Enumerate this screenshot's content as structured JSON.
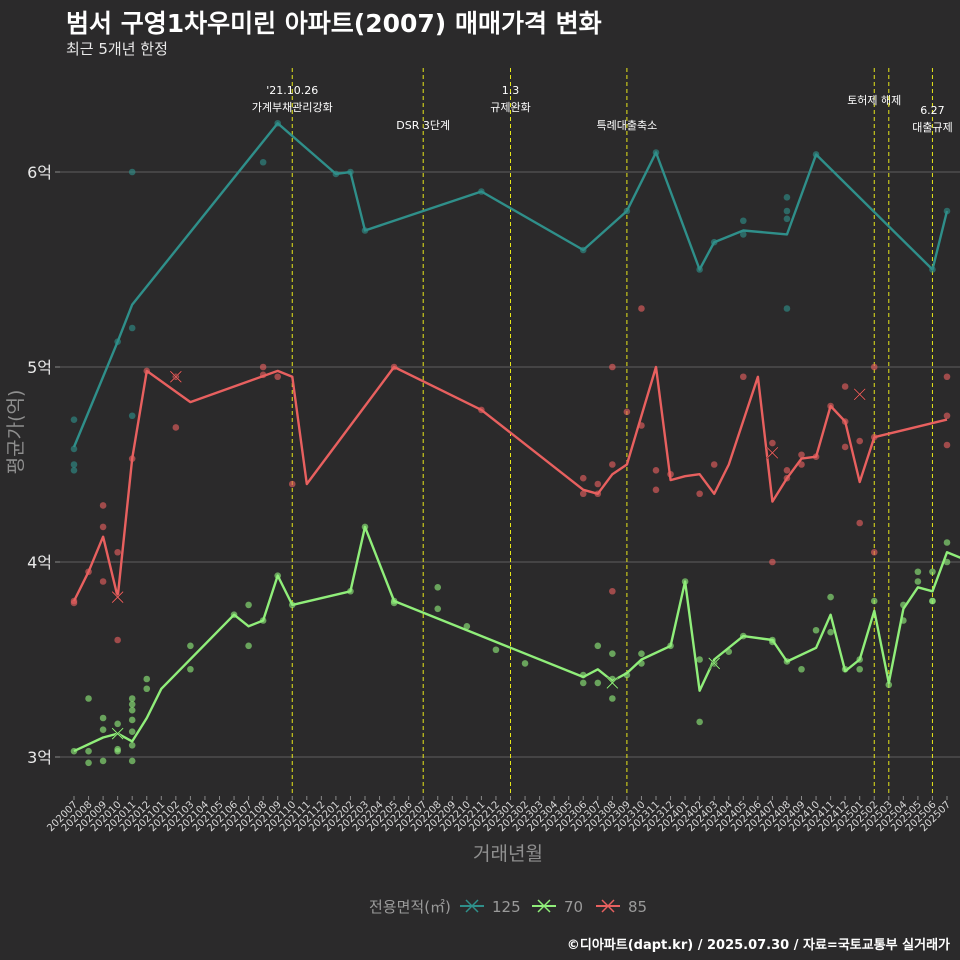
{
  "title": "범서 구영1차우미린 아파트(2007) 매매가격 변화",
  "subtitle": "최근 5개년 한정",
  "caption": "©디아파트(dapt.kr) / 2025.07.30 / 자료=국토교통부 실거래가",
  "chart_data": {
    "type": "line",
    "xlabel": "거래년월",
    "ylabel": "평균가(억)",
    "ylim": [
      2.8,
      6.5
    ],
    "grid": true,
    "legend_position": "bottom",
    "legend_title": "전용면적(㎡)",
    "y_ticks": [
      {
        "value": 3,
        "label": "3억"
      },
      {
        "value": 4,
        "label": "4억"
      },
      {
        "value": 5,
        "label": "5억"
      },
      {
        "value": 6,
        "label": "6억"
      }
    ],
    "categories": [
      "202007",
      "202008",
      "202009",
      "202010",
      "202011",
      "202012",
      "202101",
      "202102",
      "202103",
      "202104",
      "202105",
      "202106",
      "202107",
      "202108",
      "202109",
      "202110",
      "202111",
      "202112",
      "202201",
      "202202",
      "202203",
      "202204",
      "202205",
      "202206",
      "202207",
      "202208",
      "202209",
      "202210",
      "202211",
      "202212",
      "202301",
      "202302",
      "202303",
      "202304",
      "202305",
      "202306",
      "202307",
      "202308",
      "202309",
      "202310",
      "202311",
      "202312",
      "202401",
      "202402",
      "202403",
      "202404",
      "202405",
      "202406",
      "202407",
      "202408",
      "202409",
      "202410",
      "202411",
      "202412",
      "202501",
      "202502",
      "202503",
      "202504",
      "202505",
      "202506",
      "202507"
    ],
    "events": [
      {
        "category": "202110",
        "label_lines": [
          "'21.10.26",
          "가계부채관리강화"
        ],
        "row": 0
      },
      {
        "category": "202207",
        "label_lines": [
          "DSR 3단계"
        ],
        "row": 2
      },
      {
        "category": "202301",
        "label_lines": [
          "1.3",
          "규제완화"
        ],
        "row": 0
      },
      {
        "category": "202309",
        "label_lines": [
          "특례대출축소"
        ],
        "row": 2
      },
      {
        "category": "202502",
        "label_lines": [
          "토허제 해제"
        ],
        "row": 1
      },
      {
        "category": "202503",
        "label_lines": [],
        "row": 1
      },
      {
        "category": "202506",
        "label_lines": [
          "6.27",
          "대출규제"
        ],
        "row": 2
      }
    ],
    "series": [
      {
        "name": "125",
        "color": "#2f8f8a",
        "line": [
          [
            "202007",
            4.59
          ],
          [
            "202010",
            5.13
          ],
          [
            "202011",
            5.32
          ],
          [
            "202109",
            6.25
          ],
          [
            "202201",
            5.99
          ],
          [
            "202202",
            6.0
          ],
          [
            "202203",
            5.7
          ],
          [
            "202211",
            5.9
          ],
          [
            "202306",
            5.6
          ],
          [
            "202309",
            5.8
          ],
          [
            "202311",
            6.1
          ],
          [
            "202402",
            5.5
          ],
          [
            "202403",
            5.64
          ],
          [
            "202405",
            5.7
          ],
          [
            "202408",
            5.68
          ],
          [
            "202410",
            6.09
          ],
          [
            "202506",
            5.5
          ],
          [
            "202507",
            5.8
          ]
        ],
        "points": [
          [
            "202007",
            4.73
          ],
          [
            "202007",
            4.5
          ],
          [
            "202007",
            4.47
          ],
          [
            "202007",
            4.58
          ],
          [
            "202010",
            5.13
          ],
          [
            "202011",
            6.0
          ],
          [
            "202011",
            5.2
          ],
          [
            "202011",
            4.75
          ],
          [
            "202108",
            6.05
          ],
          [
            "202109",
            6.25
          ],
          [
            "202201",
            5.99
          ],
          [
            "202202",
            6.0
          ],
          [
            "202203",
            5.7
          ],
          [
            "202211",
            5.9
          ],
          [
            "202306",
            5.6
          ],
          [
            "202309",
            5.8
          ],
          [
            "202311",
            6.1
          ],
          [
            "202402",
            5.5
          ],
          [
            "202403",
            5.64
          ],
          [
            "202405",
            5.75
          ],
          [
            "202405",
            5.68
          ],
          [
            "202408",
            5.87
          ],
          [
            "202408",
            5.8
          ],
          [
            "202408",
            5.76
          ],
          [
            "202408",
            5.3
          ],
          [
            "202410",
            6.09
          ],
          [
            "202506",
            5.5
          ],
          [
            "202507",
            5.8
          ]
        ],
        "crosses": []
      },
      {
        "name": "70",
        "color": "#90ee7a",
        "line": [
          [
            "202007",
            3.03
          ],
          [
            "202009",
            3.1
          ],
          [
            "202010",
            3.12
          ],
          [
            "202011",
            3.08
          ],
          [
            "202012",
            3.2
          ],
          [
            "202101",
            3.35
          ],
          [
            "202106",
            3.73
          ],
          [
            "202107",
            3.67
          ],
          [
            "202108",
            3.7
          ],
          [
            "202109",
            3.93
          ],
          [
            "202110",
            3.78
          ],
          [
            "202202",
            3.85
          ],
          [
            "202203",
            4.18
          ],
          [
            "202205",
            3.8
          ],
          [
            "202306",
            3.41
          ],
          [
            "202307",
            3.45
          ],
          [
            "202308",
            3.39
          ],
          [
            "202309",
            3.43
          ],
          [
            "202310",
            3.5
          ],
          [
            "202312",
            3.57
          ],
          [
            "202401",
            3.9
          ],
          [
            "202402",
            3.34
          ],
          [
            "202403",
            3.5
          ],
          [
            "202405",
            3.62
          ],
          [
            "202407",
            3.6
          ],
          [
            "202408",
            3.49
          ],
          [
            "202410",
            3.56
          ],
          [
            "202411",
            3.73
          ],
          [
            "202412",
            3.44
          ],
          [
            "202501",
            3.5
          ],
          [
            "202502",
            3.75
          ],
          [
            "202503",
            3.38
          ],
          [
            "202504",
            3.76
          ],
          [
            "202505",
            3.87
          ],
          [
            "202506",
            3.85
          ],
          [
            "202507",
            4.05
          ],
          [
            "202508",
            3.99
          ]
        ],
        "points": [
          [
            "202007",
            3.03
          ],
          [
            "202008",
            3.3
          ],
          [
            "202008",
            3.03
          ],
          [
            "202008",
            2.97
          ],
          [
            "202009",
            3.2
          ],
          [
            "202009",
            3.14
          ],
          [
            "202009",
            2.98
          ],
          [
            "202010",
            3.17
          ],
          [
            "202010",
            3.03
          ],
          [
            "202010",
            3.04
          ],
          [
            "202011",
            3.3
          ],
          [
            "202011",
            3.27
          ],
          [
            "202011",
            3.24
          ],
          [
            "202011",
            3.19
          ],
          [
            "202011",
            3.13
          ],
          [
            "202011",
            3.06
          ],
          [
            "202011",
            2.98
          ],
          [
            "202012",
            3.4
          ],
          [
            "202012",
            3.35
          ],
          [
            "202103",
            3.57
          ],
          [
            "202103",
            3.45
          ],
          [
            "202106",
            3.73
          ],
          [
            "202107",
            3.78
          ],
          [
            "202107",
            3.57
          ],
          [
            "202108",
            3.7
          ],
          [
            "202109",
            3.93
          ],
          [
            "202110",
            3.78
          ],
          [
            "202202",
            3.85
          ],
          [
            "202203",
            4.18
          ],
          [
            "202205",
            3.8
          ],
          [
            "202205",
            3.79
          ],
          [
            "202208",
            3.87
          ],
          [
            "202208",
            3.76
          ],
          [
            "202210",
            3.67
          ],
          [
            "202212",
            3.55
          ],
          [
            "202302",
            3.48
          ],
          [
            "202306",
            3.42
          ],
          [
            "202306",
            3.38
          ],
          [
            "202307",
            3.57
          ],
          [
            "202307",
            3.38
          ],
          [
            "202308",
            3.53
          ],
          [
            "202308",
            3.4
          ],
          [
            "202308",
            3.3
          ],
          [
            "202309",
            3.42
          ],
          [
            "202310",
            3.53
          ],
          [
            "202310",
            3.48
          ],
          [
            "202312",
            3.57
          ],
          [
            "202401",
            3.9
          ],
          [
            "202402",
            3.18
          ],
          [
            "202402",
            3.5
          ],
          [
            "202403",
            3.48
          ],
          [
            "202404",
            3.54
          ],
          [
            "202405",
            3.62
          ],
          [
            "202407",
            3.6
          ],
          [
            "202407",
            3.59
          ],
          [
            "202408",
            3.49
          ],
          [
            "202409",
            3.45
          ],
          [
            "202410",
            3.65
          ],
          [
            "202411",
            3.82
          ],
          [
            "202411",
            3.64
          ],
          [
            "202412",
            3.45
          ],
          [
            "202501",
            3.5
          ],
          [
            "202501",
            3.45
          ],
          [
            "202502",
            3.8
          ],
          [
            "202503",
            3.37
          ],
          [
            "202504",
            3.78
          ],
          [
            "202504",
            3.7
          ],
          [
            "202505",
            3.95
          ],
          [
            "202505",
            3.9
          ],
          [
            "202506",
            3.95
          ],
          [
            "202506",
            3.8
          ],
          [
            "202506",
            3.8
          ],
          [
            "202507",
            4.1
          ],
          [
            "202507",
            4.0
          ],
          [
            "202508",
            4.26
          ],
          [
            "202508",
            3.9
          ],
          [
            "202508",
            3.78
          ]
        ],
        "crosses": [
          [
            "202010",
            3.12
          ],
          [
            "202308",
            3.38
          ],
          [
            "202403",
            3.48
          ]
        ]
      },
      {
        "name": "85",
        "color": "#e8605f",
        "line": [
          [
            "202007",
            3.8
          ],
          [
            "202008",
            3.95
          ],
          [
            "202009",
            4.13
          ],
          [
            "202010",
            3.82
          ],
          [
            "202011",
            4.53
          ],
          [
            "202012",
            4.98
          ],
          [
            "202103",
            4.82
          ],
          [
            "202109",
            4.98
          ],
          [
            "202110",
            4.95
          ],
          [
            "202111",
            4.4
          ],
          [
            "202205",
            5.0
          ],
          [
            "202211",
            4.78
          ],
          [
            "202306",
            4.37
          ],
          [
            "202307",
            4.35
          ],
          [
            "202308",
            4.45
          ],
          [
            "202309",
            4.5
          ],
          [
            "202311",
            5.0
          ],
          [
            "202312",
            4.42
          ],
          [
            "202401",
            4.44
          ],
          [
            "202402",
            4.45
          ],
          [
            "202403",
            4.35
          ],
          [
            "202404",
            4.5
          ],
          [
            "202406",
            4.95
          ],
          [
            "202407",
            4.31
          ],
          [
            "202408",
            4.43
          ],
          [
            "202409",
            4.53
          ],
          [
            "202410",
            4.54
          ],
          [
            "202411",
            4.8
          ],
          [
            "202412",
            4.72
          ],
          [
            "202501",
            4.41
          ],
          [
            "202502",
            4.64
          ],
          [
            "202507",
            4.73
          ]
        ],
        "points": [
          [
            "202007",
            3.8
          ],
          [
            "202007",
            3.79
          ],
          [
            "202008",
            3.95
          ],
          [
            "202009",
            4.29
          ],
          [
            "202009",
            4.18
          ],
          [
            "202009",
            3.9
          ],
          [
            "202010",
            4.05
          ],
          [
            "202010",
            3.6
          ],
          [
            "202011",
            4.53
          ],
          [
            "202012",
            4.98
          ],
          [
            "202102",
            4.69
          ],
          [
            "202102",
            4.95
          ],
          [
            "202108",
            5.0
          ],
          [
            "202108",
            4.96
          ],
          [
            "202109",
            4.95
          ],
          [
            "202110",
            4.4
          ],
          [
            "202205",
            5.0
          ],
          [
            "202211",
            4.78
          ],
          [
            "202306",
            4.43
          ],
          [
            "202306",
            4.35
          ],
          [
            "202307",
            4.4
          ],
          [
            "202307",
            4.35
          ],
          [
            "202308",
            5.0
          ],
          [
            "202308",
            4.5
          ],
          [
            "202308",
            3.85
          ],
          [
            "202309",
            4.77
          ],
          [
            "202310",
            5.3
          ],
          [
            "202310",
            4.7
          ],
          [
            "202311",
            4.47
          ],
          [
            "202311",
            4.37
          ],
          [
            "202312",
            4.45
          ],
          [
            "202402",
            4.35
          ],
          [
            "202403",
            4.5
          ],
          [
            "202405",
            4.95
          ],
          [
            "202407",
            4.61
          ],
          [
            "202407",
            4.0
          ],
          [
            "202408",
            4.47
          ],
          [
            "202408",
            4.43
          ],
          [
            "202409",
            4.55
          ],
          [
            "202409",
            4.5
          ],
          [
            "202410",
            4.54
          ],
          [
            "202411",
            4.8
          ],
          [
            "202412",
            4.9
          ],
          [
            "202412",
            4.72
          ],
          [
            "202412",
            4.59
          ],
          [
            "202501",
            4.62
          ],
          [
            "202501",
            4.2
          ],
          [
            "202502",
            5.0
          ],
          [
            "202502",
            4.64
          ],
          [
            "202502",
            4.05
          ],
          [
            "202507",
            4.95
          ],
          [
            "202507",
            4.6
          ],
          [
            "202507",
            4.75
          ]
        ],
        "crosses": [
          [
            "202010",
            3.82
          ],
          [
            "202102",
            4.95
          ],
          [
            "202407",
            4.56
          ],
          [
            "202501",
            4.86
          ]
        ]
      }
    ]
  }
}
